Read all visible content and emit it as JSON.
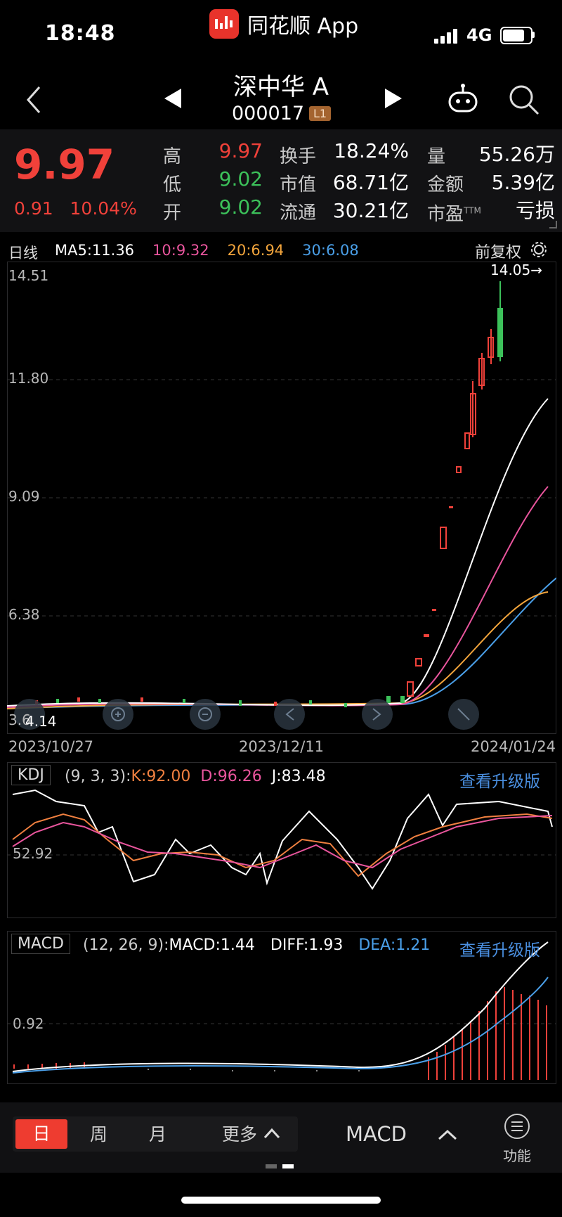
{
  "status_bar": {
    "time": "18:48",
    "app_name": "同花顺 App",
    "network": "4G"
  },
  "nav": {
    "title": "深中华 A",
    "code": "000017",
    "level_badge": "L1"
  },
  "quote": {
    "price": "9.97",
    "change": "0.91",
    "change_pct": "10.04%",
    "high_label": "高",
    "high": "9.97",
    "low_label": "低",
    "low": "9.02",
    "open_label": "开",
    "open": "9.02",
    "turnover_label": "换手",
    "turnover": "18.24%",
    "mktcap_label": "市值",
    "mktcap": "68.71亿",
    "float_label": "流通",
    "float_cap": "30.21亿",
    "volume_label": "量",
    "volume": "55.26万",
    "amount_label": "金额",
    "amount": "5.39亿",
    "pe_label": "市盈",
    "pe_sup": "TTM",
    "pe": "亏损"
  },
  "kline": {
    "period": "日线",
    "ma5": "MA5:11.36",
    "ma10": "10:9.32",
    "ma20": "20:6.94",
    "ma30": "30:6.08",
    "adjust": "前复权",
    "max_marker": "14.05→",
    "y_ticks": [
      "14.51",
      "11.80",
      "9.09",
      "6.38",
      "3.6"
    ],
    "min_marker": "4.14",
    "dates": [
      "2023/10/27",
      "2023/12/11",
      "2024/01/24"
    ]
  },
  "kdj": {
    "label": "KDJ",
    "params": "(9, 3, 3):",
    "k": "K:92.00",
    "d": "D:96.26",
    "j": "J:83.48",
    "upgrade": "查看升级版",
    "tick": "52.92"
  },
  "macd": {
    "label": "MACD",
    "params": "(12, 26, 9):",
    "macd": "MACD:1.44",
    "diff": "DIFF:1.93",
    "dea": "DEA:1.21",
    "upgrade": "查看升级版",
    "tick": "0.92"
  },
  "bottom": {
    "tabs": [
      "日",
      "周",
      "月",
      "更多"
    ],
    "indicator": "MACD",
    "function": "功能"
  },
  "colors": {
    "up": "#f0413a",
    "down": "#3cc15a",
    "ma5": "#ffffff",
    "ma10": "#e9559d",
    "ma20": "#f3a53c",
    "ma30": "#4a9fe8",
    "link": "#4a8fe0"
  },
  "chart_data": {
    "type": "candlestick",
    "title": "深中华 A 日线",
    "x_range": [
      "2023/10/27",
      "2024/01/24"
    ],
    "ylim": [
      3.6,
      14.51
    ],
    "last_candles": [
      {
        "open": 6.6,
        "close": 6.9
      },
      {
        "open": 7.0,
        "close": 7.1
      },
      {
        "open": 7.1,
        "close": 7.65
      },
      {
        "open": 8.1,
        "close": 8.15
      },
      {
        "open": 8.45,
        "close": 8.6
      },
      {
        "open": 8.85,
        "close": 9.3
      },
      {
        "open": 9.3,
        "close": 10.4
      },
      {
        "open": 10.3,
        "close": 11.2
      },
      {
        "open": 11.35,
        "close": 12.4
      },
      {
        "open": 12.5,
        "close": 13.0
      },
      {
        "open": 13.8,
        "close": 12.4
      }
    ]
  }
}
